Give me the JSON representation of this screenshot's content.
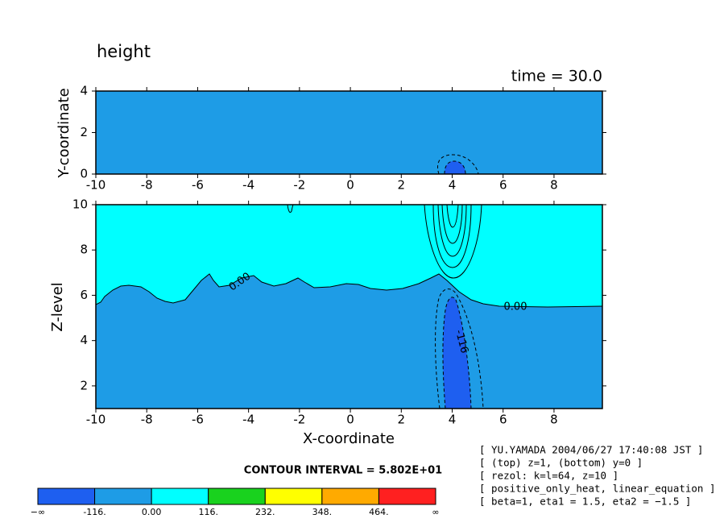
{
  "title": "height",
  "time_label": "time = 30.0",
  "chart_data": [
    {
      "type": "contour",
      "ylabel": "Y-coordinate",
      "xlim": [
        -10,
        9.9
      ],
      "xticks": [
        -10,
        -8,
        -6,
        -4,
        -2,
        0,
        2,
        4,
        6,
        8
      ],
      "ylim": [
        0,
        4
      ],
      "yticks": [
        0,
        2,
        4
      ]
    },
    {
      "type": "contour",
      "xlabel": "X-coordinate",
      "ylabel": "Z-level",
      "xlim": [
        -10,
        9.9
      ],
      "xticks": [
        -10,
        -8,
        -6,
        -4,
        -2,
        0,
        2,
        4,
        6,
        8
      ],
      "ylim": [
        1,
        10
      ],
      "yticks": [
        2,
        4,
        6,
        8,
        10
      ],
      "contour_labels": [
        {
          "value": 0,
          "label": "0.00"
        },
        {
          "value": 0,
          "label": "0.00"
        },
        {
          "value": -116,
          "label": "-116"
        }
      ]
    }
  ],
  "colorbar": {
    "title": "CONTOUR INTERVAL = 5.802E+01",
    "lower_end": "−∞",
    "upper_end": "∞",
    "levels": [
      {
        "value": -116,
        "label": "-116."
      },
      {
        "value": 0,
        "label": "0.00"
      },
      {
        "value": 116,
        "label": "116."
      },
      {
        "value": 232,
        "label": "232."
      },
      {
        "value": 348,
        "label": "348."
      },
      {
        "value": 464,
        "label": "464."
      }
    ],
    "colors": [
      "#1e5ff0",
      "#1e9ce6",
      "#00ffff",
      "#19d21e",
      "#ffff00",
      "#ffaa00",
      "#ff2020"
    ]
  },
  "notes": [
    "[ YU.YAMADA 2004/06/27 17:40:08 JST ]",
    "[ (top) z=1, (bottom) y=0 ]",
    "[ rezol: k=l=64, z=10 ]",
    "[ positive_only_heat, linear_equation ]",
    "[ beta=1, eta1 = 1.5, eta2 = −1.5 ]"
  ]
}
